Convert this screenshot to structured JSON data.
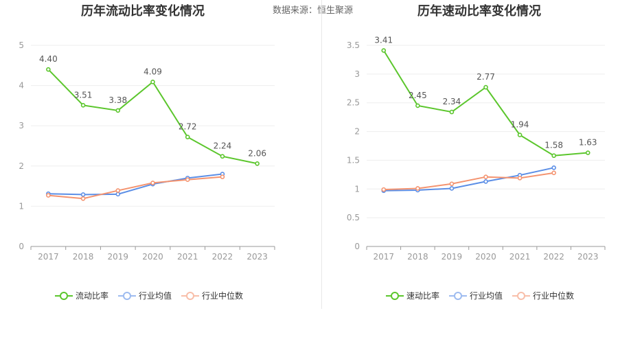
{
  "source_label": "数据来源：恒生聚源",
  "colors": {
    "main": "#5bc62c",
    "avg": "#5b8ee6",
    "median": "#f4936f",
    "axis": "#999999",
    "grid": "#eeeeee",
    "text": "#666666"
  },
  "chart_data": [
    {
      "type": "line",
      "title": "历年流动比率变化情况",
      "categories": [
        "2017",
        "2018",
        "2019",
        "2020",
        "2021",
        "2022",
        "2023"
      ],
      "ylim": [
        0,
        5
      ],
      "yticks": [
        "0",
        "1",
        "2",
        "3",
        "4",
        "5"
      ],
      "grid": true,
      "legend_position": "bottom",
      "series": [
        {
          "name": "流动比率",
          "color": "#5bc62c",
          "values": [
            4.4,
            3.51,
            3.38,
            4.09,
            2.72,
            2.24,
            2.06
          ],
          "labels": [
            "4.40",
            "3.51",
            "3.38",
            "4.09",
            "2.72",
            "2.24",
            "2.06"
          ]
        },
        {
          "name": "行业均值",
          "color": "#5b8ee6",
          "values": [
            1.31,
            1.29,
            1.3,
            1.55,
            1.7,
            1.8,
            null
          ],
          "labels": []
        },
        {
          "name": "行业中位数",
          "color": "#f4936f",
          "values": [
            1.27,
            1.19,
            1.39,
            1.58,
            1.66,
            1.73,
            null
          ],
          "labels": []
        }
      ]
    },
    {
      "type": "line",
      "title": "历年速动比率变化情况",
      "categories": [
        "2017",
        "2018",
        "2019",
        "2020",
        "2021",
        "2022",
        "2023"
      ],
      "ylim": [
        0,
        3.5
      ],
      "yticks": [
        "0",
        "0.5",
        "1",
        "1.5",
        "2",
        "2.5",
        "3",
        "3.5"
      ],
      "grid": true,
      "legend_position": "bottom",
      "series": [
        {
          "name": "速动比率",
          "color": "#5bc62c",
          "values": [
            3.41,
            2.45,
            2.34,
            2.77,
            1.94,
            1.58,
            1.63
          ],
          "labels": [
            "3.41",
            "2.45",
            "2.34",
            "2.77",
            "1.94",
            "1.58",
            "1.63"
          ]
        },
        {
          "name": "行业均值",
          "color": "#5b8ee6",
          "values": [
            0.97,
            0.98,
            1.01,
            1.13,
            1.24,
            1.37,
            null
          ],
          "labels": []
        },
        {
          "name": "行业中位数",
          "color": "#f4936f",
          "values": [
            0.99,
            1.01,
            1.09,
            1.21,
            1.19,
            1.28,
            null
          ],
          "labels": []
        }
      ]
    }
  ]
}
